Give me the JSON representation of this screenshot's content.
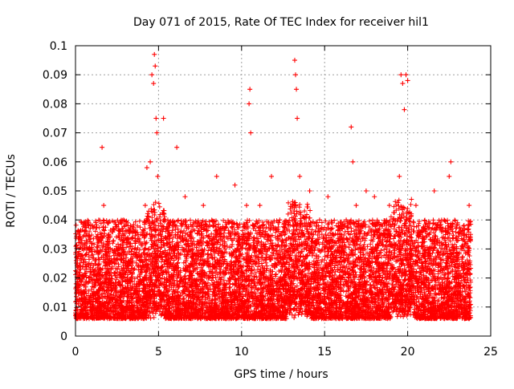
{
  "chart_data": {
    "type": "scatter",
    "title": "Day 071 of 2015, Rate Of TEC Index for receiver hil1",
    "xlabel": "GPS time / hours",
    "ylabel": "ROTI / TECUs",
    "xlim": [
      0,
      25
    ],
    "ylim": [
      0,
      0.1
    ],
    "xticks": [
      0,
      5,
      10,
      15,
      20,
      25
    ],
    "xtick_labels": [
      "0",
      "5",
      "10",
      "15",
      "20",
      "25"
    ],
    "yticks": [
      0,
      0.01,
      0.02,
      0.03,
      0.04,
      0.05,
      0.06,
      0.07,
      0.08,
      0.09,
      0.1
    ],
    "ytick_labels": [
      "0",
      "0.01",
      "0.02",
      "0.03",
      "0.04",
      "0.05",
      "0.06",
      "0.07",
      "0.08",
      "0.09",
      "0.1"
    ],
    "grid": true,
    "marker": "+",
    "marker_color": "#ff0000",
    "data_time_range_hours": [
      0,
      23.8
    ],
    "series": [
      {
        "name": "ROTI",
        "x": [
          0.1,
          0.3,
          0.5,
          0.8,
          1.0,
          1.2,
          1.5,
          1.6,
          1.7,
          1.8,
          2.0,
          2.3,
          2.6,
          2.9,
          3.0,
          3.3,
          3.6,
          3.8,
          4.0,
          4.2,
          4.3,
          4.4,
          4.5,
          4.6,
          4.7,
          4.75,
          4.8,
          4.85,
          4.9,
          4.95,
          5.0,
          5.1,
          5.3,
          5.5,
          5.8,
          6.0,
          6.1,
          6.3,
          6.6,
          6.9,
          7.1,
          7.4,
          7.7,
          8.0,
          8.2,
          8.5,
          8.8,
          9.0,
          9.3,
          9.6,
          9.9,
          10.1,
          10.3,
          10.45,
          10.5,
          10.55,
          10.8,
          11.1,
          11.3,
          11.6,
          11.8,
          12.0,
          12.3,
          12.6,
          12.9,
          13.1,
          13.2,
          13.25,
          13.3,
          13.35,
          13.5,
          13.7,
          13.9,
          14.1,
          14.4,
          14.7,
          15.0,
          15.2,
          15.5,
          15.8,
          16.1,
          16.3,
          16.6,
          16.7,
          16.9,
          17.2,
          17.5,
          17.8,
          18.0,
          18.3,
          18.6,
          18.9,
          19.2,
          19.5,
          19.6,
          19.7,
          19.8,
          19.9,
          20.0,
          20.2,
          20.5,
          20.8,
          21.0,
          21.3,
          21.6,
          21.9,
          22.2,
          22.5,
          22.6,
          22.8,
          23.1,
          23.4,
          23.7
        ],
        "y": [
          0.018,
          0.024,
          0.015,
          0.02,
          0.03,
          0.012,
          0.022,
          0.065,
          0.045,
          0.02,
          0.035,
          0.018,
          0.028,
          0.04,
          0.015,
          0.025,
          0.032,
          0.018,
          0.022,
          0.045,
          0.058,
          0.03,
          0.06,
          0.09,
          0.087,
          0.097,
          0.093,
          0.075,
          0.07,
          0.055,
          0.035,
          0.02,
          0.075,
          0.025,
          0.018,
          0.03,
          0.065,
          0.022,
          0.048,
          0.035,
          0.015,
          0.025,
          0.045,
          0.02,
          0.03,
          0.055,
          0.025,
          0.03,
          0.018,
          0.052,
          0.028,
          0.035,
          0.045,
          0.08,
          0.085,
          0.07,
          0.025,
          0.045,
          0.02,
          0.03,
          0.055,
          0.025,
          0.04,
          0.018,
          0.03,
          0.045,
          0.095,
          0.09,
          0.085,
          0.075,
          0.055,
          0.035,
          0.025,
          0.05,
          0.02,
          0.04,
          0.03,
          0.048,
          0.025,
          0.035,
          0.02,
          0.04,
          0.072,
          0.06,
          0.045,
          0.022,
          0.05,
          0.03,
          0.048,
          0.025,
          0.035,
          0.045,
          0.02,
          0.055,
          0.09,
          0.087,
          0.078,
          0.09,
          0.088,
          0.03,
          0.045,
          0.022,
          0.018,
          0.035,
          0.05,
          0.025,
          0.04,
          0.055,
          0.06,
          0.03,
          0.018,
          0.025,
          0.045
        ]
      }
    ]
  }
}
